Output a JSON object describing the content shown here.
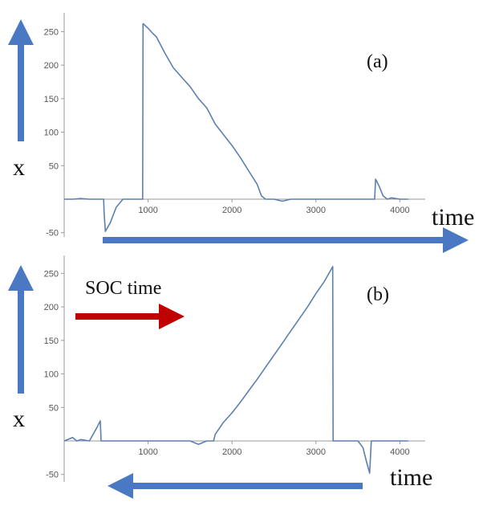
{
  "colors": {
    "series": "#5b7fb0",
    "axis": "#9a9a9a",
    "arrow_blue": "#4a78c2",
    "arrow_red": "#c00000"
  },
  "labels": {
    "x_axis_word": "time",
    "y_axis_word": "x",
    "soc_label": "SOC time",
    "panel_a": "(a)",
    "panel_b": "(b)"
  },
  "chart_data": [
    {
      "type": "line",
      "panel": "(a)",
      "xlim": [
        0,
        4150
      ],
      "ylim": [
        -55,
        275
      ],
      "xticks": [
        1000,
        2000,
        3000,
        4000
      ],
      "yticks": [
        -50,
        50,
        100,
        150,
        200,
        250
      ],
      "grid": false,
      "arrows": [
        "up-arrow-left",
        "right-arrow-bottom"
      ],
      "series": [
        {
          "x": [
            0,
            100,
            200,
            300,
            420,
            470,
            475,
            490,
            550,
            620,
            700,
            900,
            935,
            940,
            1000,
            1050,
            1100,
            1200,
            1300,
            1400,
            1500,
            1600,
            1700,
            1800,
            1900,
            2000,
            2100,
            2200,
            2300,
            2350,
            2400,
            2500,
            2600,
            2700,
            2800,
            2900,
            3000,
            3100,
            3200,
            3300,
            3400,
            3500,
            3600,
            3700,
            3710,
            3750,
            3800,
            3850,
            3900,
            4000,
            4100
          ],
          "values": [
            0,
            0,
            1,
            0,
            0,
            0,
            -18,
            -48,
            -35,
            -12,
            0,
            0,
            0,
            262,
            255,
            248,
            242,
            218,
            196,
            182,
            168,
            150,
            136,
            112,
            96,
            80,
            62,
            42,
            22,
            5,
            0,
            0,
            -3,
            0,
            0,
            0,
            0,
            0,
            0,
            0,
            0,
            0,
            0,
            0,
            30,
            20,
            5,
            0,
            2,
            0,
            0
          ]
        }
      ]
    },
    {
      "type": "line",
      "panel": "(b)",
      "xlim": [
        0,
        4150
      ],
      "ylim": [
        -55,
        275
      ],
      "xticks": [
        1000,
        2000,
        3000,
        4000
      ],
      "yticks": [
        -50,
        50,
        100,
        150,
        200,
        250
      ],
      "grid": false,
      "arrows": [
        "up-arrow-left",
        "left-arrow-bottom",
        "red-right-arrow"
      ],
      "series": [
        {
          "x": [
            0,
            100,
            150,
            200,
            300,
            390,
            430,
            440,
            460,
            550,
            700,
            900,
            1100,
            1300,
            1500,
            1600,
            1700,
            1780,
            1800,
            1900,
            2000,
            2100,
            2200,
            2300,
            2400,
            2500,
            2600,
            2700,
            2800,
            2900,
            3000,
            3100,
            3200,
            3205,
            3300,
            3400,
            3500,
            3560,
            3600,
            3640,
            3660,
            3700,
            3800,
            3900,
            4000,
            4100
          ],
          "values": [
            0,
            5,
            0,
            2,
            0,
            20,
            30,
            0,
            0,
            0,
            0,
            0,
            0,
            0,
            0,
            -5,
            0,
            0,
            10,
            28,
            42,
            58,
            75,
            92,
            110,
            128,
            146,
            164,
            182,
            200,
            220,
            238,
            260,
            0,
            0,
            0,
            0,
            -10,
            -30,
            -48,
            0,
            0,
            0,
            0,
            0,
            0
          ]
        }
      ]
    }
  ]
}
